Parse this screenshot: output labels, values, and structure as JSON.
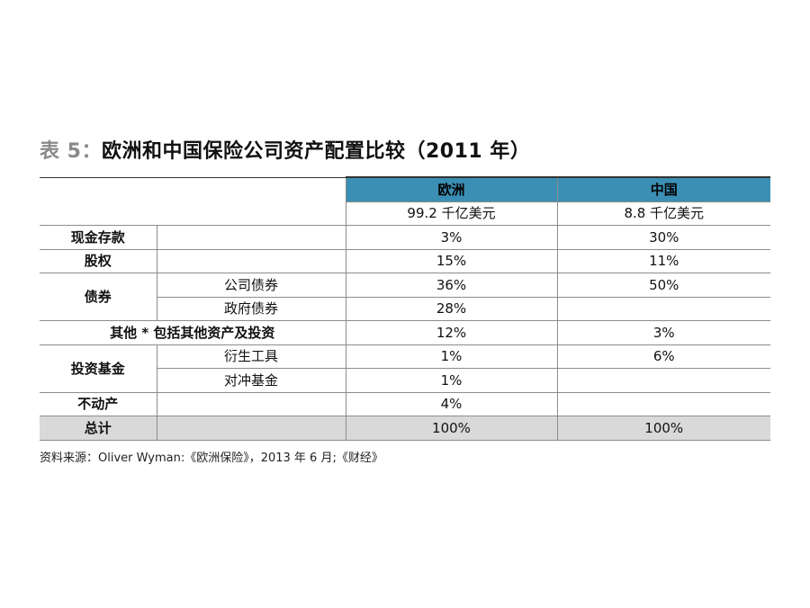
{
  "title": {
    "prefix": "表 5：",
    "main": "欧洲和中国保险公司资产配置比较（2011 年）"
  },
  "table": {
    "headers": {
      "eu": "欧洲",
      "cn": "中国"
    },
    "totals": {
      "eu": "99.2 千亿美元",
      "cn": "8.8 千亿美元"
    },
    "rows": {
      "cash": {
        "label": "现金存款",
        "eu": "3%",
        "cn": "30%"
      },
      "equity": {
        "label": "股权",
        "eu": "15%",
        "cn": "11%"
      },
      "bonds": {
        "label": "债券",
        "corporate": {
          "label": "公司债券",
          "eu": "36%",
          "cn": "50%"
        },
        "government": {
          "label": "政府债券",
          "eu": "28%",
          "cn": ""
        }
      },
      "other": {
        "label": "其他 * 包括其他资产及投资",
        "eu": "12%",
        "cn": "3%"
      },
      "investment_funds": {
        "label": "投资基金",
        "derivatives": {
          "label": "衍生工具",
          "eu": "1%",
          "cn": "6%"
        },
        "hedge": {
          "label": "对冲基金",
          "eu": "1%",
          "cn": ""
        }
      },
      "real_estate": {
        "label": "不动产",
        "eu": "4%",
        "cn": ""
      },
      "total": {
        "label": "总计",
        "eu": "100%",
        "cn": "100%"
      }
    }
  },
  "source": "资料来源：Oliver Wyman:《欧洲保险》，2013 年 6 月;《财经》"
}
